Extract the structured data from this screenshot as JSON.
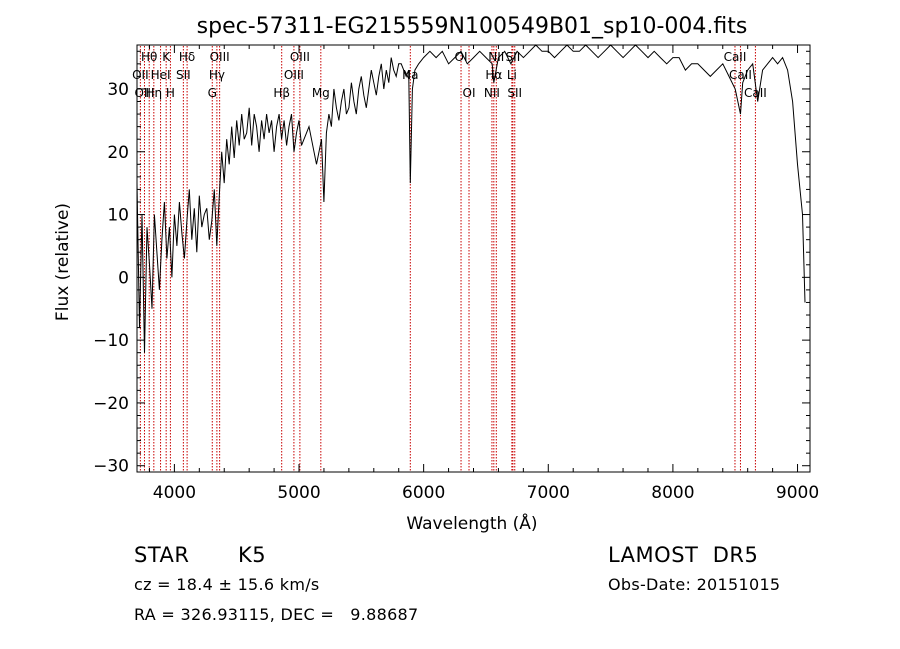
{
  "chart_data": {
    "type": "line",
    "title": "spec-57311-EG215559N100549B01_sp10-004.fits",
    "xlabel": "Wavelength (Å)",
    "ylabel": "Flux (relative)",
    "xlim": [
      3700,
      9100
    ],
    "ylim": [
      -31,
      37
    ],
    "xticks": [
      4000,
      5000,
      6000,
      7000,
      8000,
      9000
    ],
    "yticks": [
      -30,
      -20,
      -10,
      0,
      10,
      20,
      30
    ],
    "line_color": "#000000",
    "marker_color": "#c80000",
    "series": [
      {
        "x": [
          3700,
          3720,
          3740,
          3760,
          3780,
          3800,
          3820,
          3840,
          3860,
          3880,
          3900,
          3920,
          3940,
          3960,
          3980,
          4000,
          4020,
          4040,
          4060,
          4080,
          4100,
          4120,
          4140,
          4160,
          4180,
          4200,
          4220,
          4240,
          4260,
          4280,
          4300,
          4320,
          4340,
          4360,
          4380,
          4400,
          4420,
          4440,
          4460,
          4480,
          4500,
          4520,
          4540,
          4560,
          4580,
          4600,
          4620,
          4640,
          4660,
          4680,
          4700,
          4720,
          4740,
          4760,
          4780,
          4800,
          4820,
          4840,
          4860,
          4880,
          4900,
          4920,
          4940,
          4960,
          4980,
          5000,
          5020,
          5040,
          5060,
          5080,
          5100,
          5120,
          5140,
          5160,
          5180,
          5200,
          5220,
          5240,
          5260,
          5280,
          5300,
          5320,
          5340,
          5360,
          5380,
          5400,
          5420,
          5440,
          5460,
          5480,
          5500,
          5520,
          5540,
          5560,
          5580,
          5600,
          5620,
          5640,
          5660,
          5680,
          5700,
          5720,
          5740,
          5760,
          5780,
          5800,
          5820,
          5840,
          5860,
          5880,
          5893,
          5910,
          5930,
          5960,
          6000,
          6050,
          6100,
          6150,
          6200,
          6250,
          6300,
          6350,
          6400,
          6450,
          6500,
          6550,
          6563,
          6600,
          6650,
          6700,
          6750,
          6800,
          6850,
          6900,
          6950,
          7000,
          7050,
          7100,
          7150,
          7200,
          7250,
          7300,
          7350,
          7400,
          7450,
          7500,
          7550,
          7600,
          7650,
          7700,
          7750,
          7800,
          7850,
          7900,
          7950,
          8000,
          8050,
          8100,
          8150,
          8200,
          8250,
          8300,
          8350,
          8400,
          8450,
          8500,
          8542,
          8560,
          8600,
          8640,
          8680,
          8720,
          8760,
          8800,
          8840,
          8880,
          8920,
          8960,
          9000,
          9020,
          9040,
          9060
        ],
        "y": [
          15,
          -8,
          10,
          -12,
          8,
          2,
          -5,
          10,
          4,
          -2,
          6,
          12,
          3,
          8,
          0,
          10,
          5,
          12,
          7,
          3,
          9,
          14,
          6,
          11,
          4,
          13,
          8,
          10,
          11,
          6,
          9,
          14,
          5,
          13,
          20,
          15,
          22,
          18,
          24,
          19,
          25,
          21,
          26,
          22,
          23,
          27,
          21,
          26,
          24,
          20,
          25,
          22,
          26,
          23,
          25,
          20,
          24,
          26,
          22,
          25,
          21,
          24,
          26,
          20,
          23,
          25,
          21,
          22,
          23,
          24,
          22,
          20,
          18,
          20,
          22,
          12,
          23,
          26,
          24,
          30,
          27,
          25,
          28,
          30,
          26,
          27,
          31,
          28,
          26,
          30,
          32,
          29,
          27,
          30,
          33,
          31,
          29,
          32,
          34,
          30,
          33,
          31,
          35,
          33,
          32,
          34,
          34,
          33,
          32,
          33,
          15,
          30,
          33,
          34,
          35,
          36,
          35,
          36,
          34,
          35,
          36,
          34,
          35,
          36,
          35,
          34,
          31,
          35,
          36,
          34,
          36,
          35,
          36,
          37,
          36,
          36,
          35,
          36,
          37,
          36,
          36,
          37,
          36,
          35,
          36,
          37,
          36,
          35,
          36,
          37,
          36,
          35,
          36,
          35,
          34,
          35,
          35,
          33,
          34,
          34,
          33,
          32,
          33,
          34,
          32,
          30,
          26,
          31,
          33,
          34,
          28,
          33,
          34,
          35,
          34,
          35,
          33,
          28,
          18,
          14,
          10,
          -4
        ]
      }
    ],
    "lines": [
      {
        "label": "Hθ",
        "x": 3798,
        "row": 1
      },
      {
        "label": "OII",
        "x": 3727,
        "row": 2
      },
      {
        "label": "OIII",
        "x": 3760,
        "row": 3
      },
      {
        "label": "Hη",
        "x": 3835,
        "row": 3
      },
      {
        "label": "HeI",
        "x": 3889,
        "row": 2
      },
      {
        "label": "K",
        "x": 3934,
        "row": 1
      },
      {
        "label": "H",
        "x": 3968,
        "row": 3
      },
      {
        "label": "Hδ",
        "x": 4102,
        "row": 1
      },
      {
        "label": "SII",
        "x": 4072,
        "row": 2
      },
      {
        "label": "OIII",
        "x": 4363,
        "row": 1
      },
      {
        "label": "Hγ",
        "x": 4341,
        "row": 2
      },
      {
        "label": "G",
        "x": 4304,
        "row": 3
      },
      {
        "label": "Hβ",
        "x": 4861,
        "row": 3
      },
      {
        "label": "OIII",
        "x": 4959,
        "row": 2
      },
      {
        "label": "OIII",
        "x": 5007,
        "row": 1
      },
      {
        "label": "Mg",
        "x": 5175,
        "row": 3
      },
      {
        "label": "Na",
        "x": 5893,
        "row": 2
      },
      {
        "label": "OI",
        "x": 6300,
        "row": 1
      },
      {
        "label": "OI",
        "x": 6364,
        "row": 3
      },
      {
        "label": "NII",
        "x": 6548,
        "row": 3
      },
      {
        "label": "Hα",
        "x": 6563,
        "row": 2
      },
      {
        "label": "NII",
        "x": 6583,
        "row": 1
      },
      {
        "label": "Li",
        "x": 6708,
        "row": 2
      },
      {
        "label": "SII",
        "x": 6716,
        "row": 1
      },
      {
        "label": "SII",
        "x": 6731,
        "row": 3
      },
      {
        "label": "CaII",
        "x": 8498,
        "row": 1
      },
      {
        "label": "CaII",
        "x": 8542,
        "row": 2
      },
      {
        "label": "CaII",
        "x": 8662,
        "row": 3
      }
    ]
  },
  "info": {
    "class": "STAR",
    "subclass": "K5",
    "cz": "cz = 18.4 ± 15.6 km/s",
    "coords": "RA = 326.93115, DEC =   9.88687",
    "survey": "LAMOST  DR5",
    "obs_date": "Obs-Date: 20151015"
  }
}
